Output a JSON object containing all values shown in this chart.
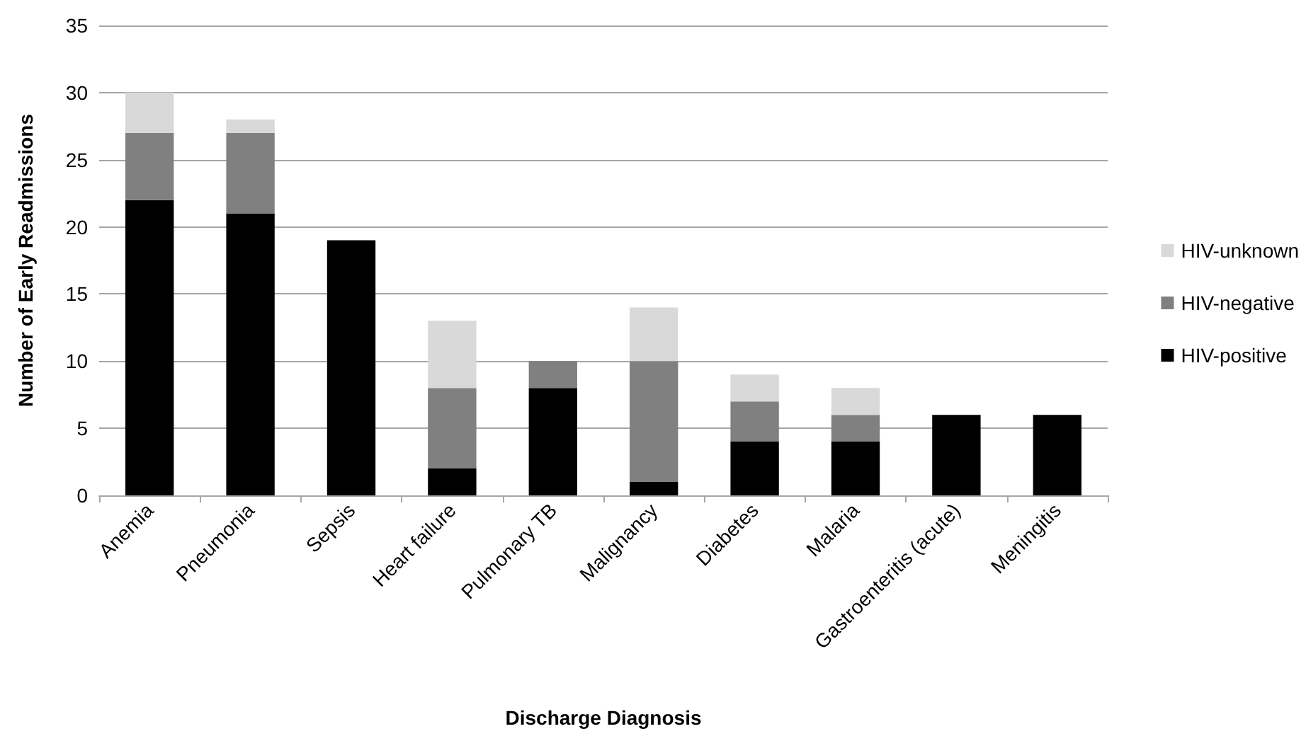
{
  "chart_data": {
    "type": "bar",
    "stacked": true,
    "xlabel": "Discharge Diagnosis",
    "ylabel": "Number of Early Readmissions",
    "categories": [
      "Anemia",
      "Pneumonia",
      "Sepsis",
      "Heart failure",
      "Pulmonary TB",
      "Malignancy",
      "Diabetes",
      "Malaria",
      "Gastroenteritis (acute)",
      "Meningitis"
    ],
    "series": [
      {
        "name": "HIV-positive",
        "color": "#000000",
        "values": [
          22,
          21,
          19,
          2,
          8,
          1,
          4,
          4,
          6,
          6
        ]
      },
      {
        "name": "HIV-negative",
        "color": "#808080",
        "values": [
          5,
          6,
          0,
          6,
          2,
          9,
          3,
          2,
          0,
          0
        ]
      },
      {
        "name": "HIV-unknown",
        "color": "#d9d9d9",
        "values": [
          3,
          1,
          0,
          5,
          0,
          4,
          2,
          2,
          0,
          0
        ]
      }
    ],
    "ylim": [
      0,
      35
    ],
    "yticks": [
      0,
      5,
      10,
      15,
      20,
      25,
      30,
      35
    ],
    "grid": "y",
    "legend": "right"
  }
}
